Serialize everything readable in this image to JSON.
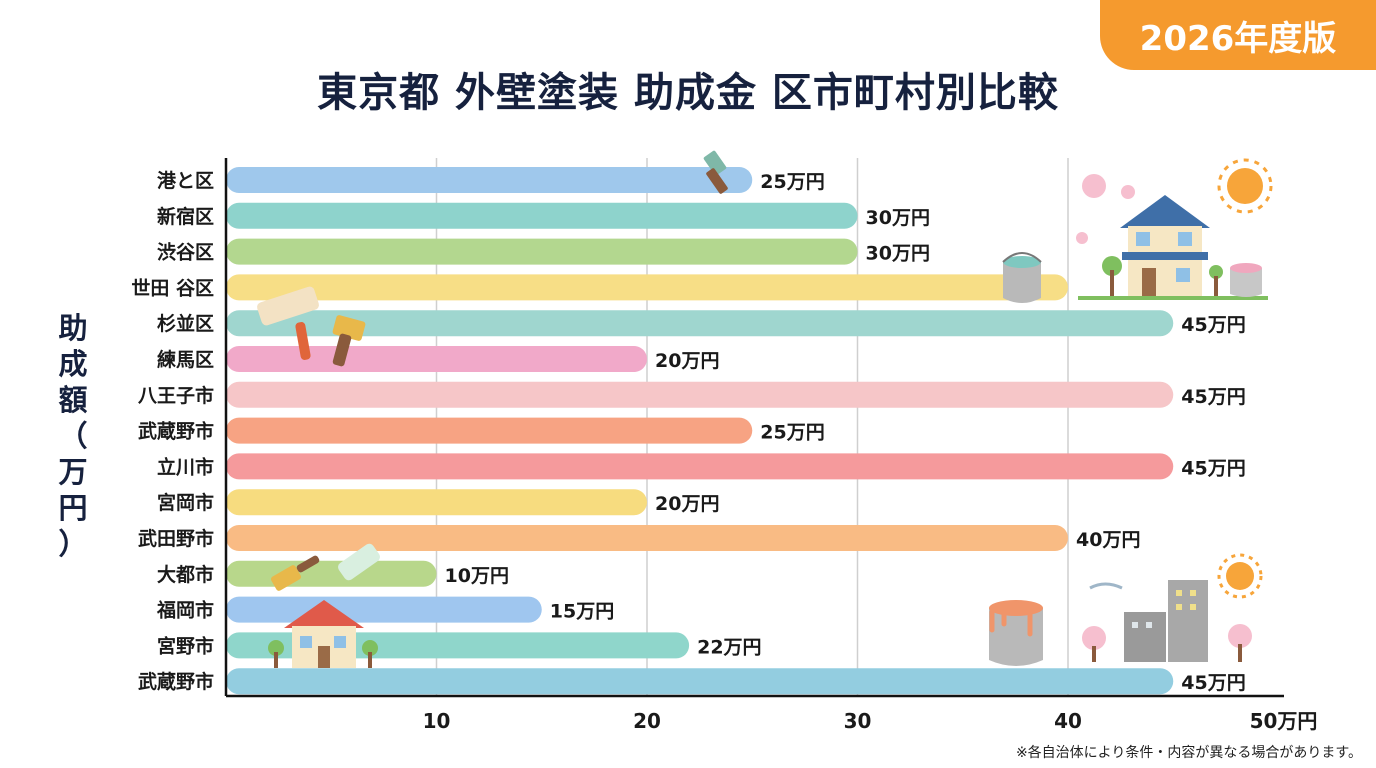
{
  "badge": "2026年度版",
  "title": "東京都 外壁塗装 助成金 区市町村別比較",
  "ylabel_chars": [
    "助",
    "成",
    "額",
    "（",
    "万",
    "円",
    "）"
  ],
  "note": "※各自治体により条件・内容が異なる場合があります。",
  "chart_data": {
    "type": "bar",
    "orientation": "horizontal",
    "title": "東京都 外壁塗装 助成金 区市町村別比較",
    "ylabel": "助成額（万円）",
    "xlim": [
      0,
      50
    ],
    "xticks": [
      10,
      20,
      30,
      40,
      50
    ],
    "xtick_labels": [
      "10",
      "20",
      "30",
      "40",
      "50万円"
    ],
    "grid": true,
    "categories": [
      "港と区",
      "新宿区",
      "渋谷区",
      "世田 谷区",
      "杉並区",
      "練馬区",
      "八王子市",
      "武蔵野市",
      "立川市",
      "宮岡市",
      "武田野市",
      "大都市",
      "福岡市",
      "宮野市",
      "武蔵野市"
    ],
    "values": [
      25,
      30,
      30,
      40,
      45,
      20,
      45,
      25,
      45,
      20,
      40,
      10,
      15,
      22,
      45
    ],
    "value_labels": [
      "25万円",
      "30万円",
      "30万円",
      "",
      "45万円",
      "20万円",
      "45万円",
      "25万円",
      "45万円",
      "20万円",
      "40万円",
      "10万円",
      "15万円",
      "22万円",
      "45万円"
    ],
    "colors": [
      "#9fc8ec",
      "#8ed3cc",
      "#b3d78f",
      "#f7de86",
      "#9fd6cf",
      "#f1a9c9",
      "#f6c6c8",
      "#f7a383",
      "#f59a9c",
      "#f7dc7f",
      "#f9bb84",
      "#b8d78b",
      "#9fc6ef",
      "#8fd6cb",
      "#93cde0"
    ]
  }
}
